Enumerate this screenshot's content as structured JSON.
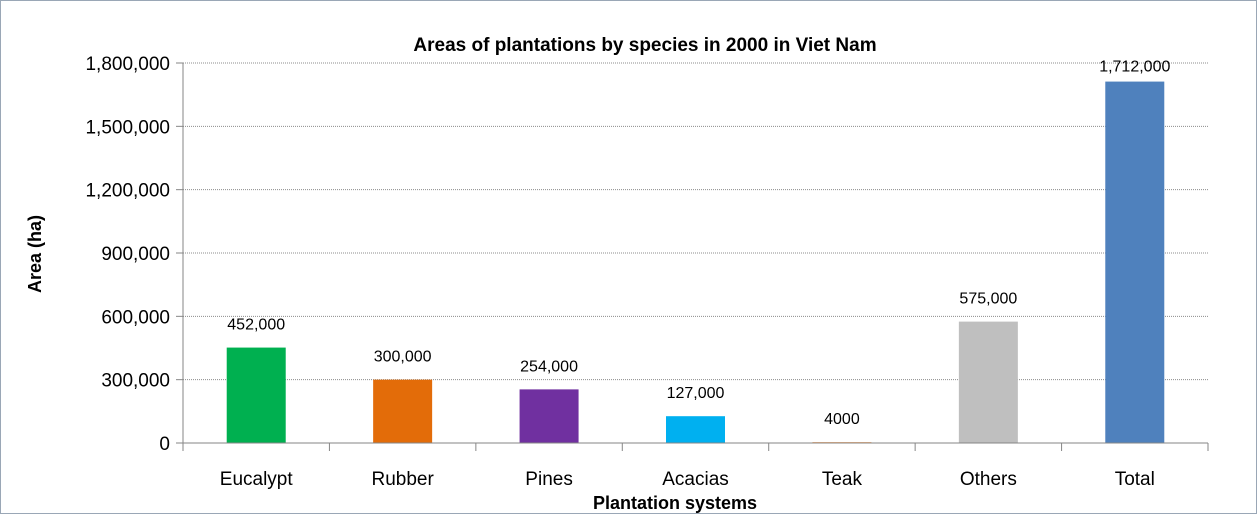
{
  "chart_data": {
    "type": "bar",
    "title": "Areas of plantations by species in 2000 in Viet Nam",
    "xlabel": "Plantation systems",
    "ylabel": "Area (ha)",
    "categories": [
      "Eucalypt",
      "Rubber",
      "Pines",
      "Acacias",
      "Teak",
      "Others",
      "Total"
    ],
    "values": [
      452000,
      300000,
      254000,
      127000,
      4000,
      575000,
      1712000
    ],
    "data_labels": [
      "452,000",
      "300,000",
      "254,000",
      "127,000",
      "4000",
      "575,000",
      "1,712,000"
    ],
    "colors": [
      "#00b050",
      "#e36c09",
      "#7030a0",
      "#00b0f0",
      "#f79646",
      "#bfbfbf",
      "#4f81bd"
    ],
    "ylim": [
      0,
      1800000
    ],
    "yticks": [
      0,
      300000,
      600000,
      900000,
      1200000,
      1500000,
      1800000
    ],
    "ytick_labels": [
      "0",
      "300,000",
      "600,000",
      "900,000",
      "1,200,000",
      "1,500,000",
      "1,800,000"
    ],
    "grid": true,
    "legend": "none"
  }
}
